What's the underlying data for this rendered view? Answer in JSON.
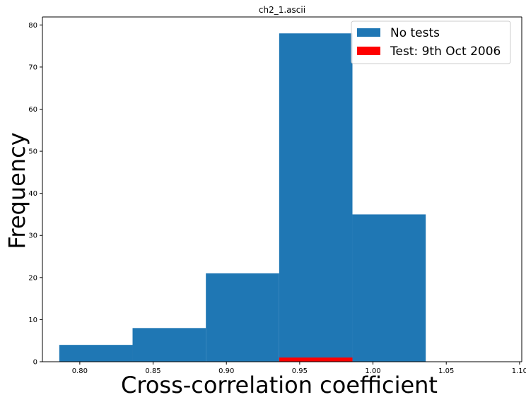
{
  "chart_data": {
    "type": "bar",
    "title": "ch2_1.ascii",
    "xlabel": "Cross-correlation coefficient",
    "ylabel": "Frequency",
    "xlim": [
      0.7745,
      1.1015
    ],
    "ylim": [
      0,
      81.9
    ],
    "xticks": [
      "0.80",
      "0.85",
      "0.90",
      "0.95",
      "1.00",
      "1.05",
      "1.10"
    ],
    "xtick_values": [
      0.8,
      0.85,
      0.9,
      0.95,
      1.0,
      1.05,
      1.1
    ],
    "yticks": [
      "0",
      "10",
      "20",
      "30",
      "40",
      "50",
      "60",
      "70",
      "80"
    ],
    "ytick_values": [
      0,
      10,
      20,
      30,
      40,
      50,
      60,
      70,
      80
    ],
    "grid": false,
    "legend_position": "top-right",
    "series": [
      {
        "name": "No tests",
        "color": "#1f77b4",
        "bins": [
          {
            "x0": 0.786,
            "x1": 0.836,
            "value": 4
          },
          {
            "x0": 0.836,
            "x1": 0.886,
            "value": 8
          },
          {
            "x0": 0.886,
            "x1": 0.936,
            "value": 21
          },
          {
            "x0": 0.936,
            "x1": 0.986,
            "value": 78
          },
          {
            "x0": 0.986,
            "x1": 1.036,
            "value": 35
          }
        ]
      },
      {
        "name": "Test: 9th Oct 2006",
        "color": "#ff0000",
        "bins": [
          {
            "x0": 0.936,
            "x1": 0.986,
            "value": 1
          }
        ]
      }
    ]
  }
}
